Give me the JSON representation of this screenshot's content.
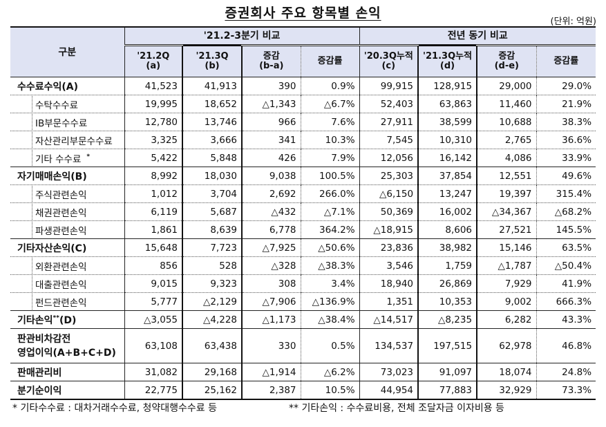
{
  "title": "증권회사 주요 항목별 손익",
  "unit": "(단위: 억원)",
  "header": {
    "category": "구분",
    "group1": "'21.2-3분기 비교",
    "group2": "전년 동기 비교",
    "cols": [
      {
        "line1": "'21.2Q",
        "line2": "(a)"
      },
      {
        "line1": "'21.3Q",
        "line2": "(b)"
      },
      {
        "line1": "증감",
        "line2": "(b-a)"
      },
      {
        "line1": "증감률",
        "line2": ""
      },
      {
        "line1": "'20.3Q누적",
        "line2": "(c)"
      },
      {
        "line1": "'21.3Q누적",
        "line2": "(d)"
      },
      {
        "line1": "증감",
        "line2": "(d-e)"
      },
      {
        "line1": "증감률",
        "line2": ""
      }
    ]
  },
  "rows": [
    {
      "label": "수수료수익(A)",
      "type": "major",
      "values": [
        "41,523",
        "41,913",
        "390",
        "0.9%",
        "99,915",
        "128,915",
        "29,000",
        "29.0%"
      ]
    },
    {
      "label": "수탁수수료",
      "type": "minor",
      "values": [
        "19,995",
        "18,652",
        "△1,343",
        "△6.7%",
        "52,403",
        "63,863",
        "11,460",
        "21.9%"
      ]
    },
    {
      "label": "IB부문수수료",
      "type": "minor",
      "values": [
        "12,780",
        "13,746",
        "966",
        "7.6%",
        "27,911",
        "38,599",
        "10,688",
        "38.3%"
      ]
    },
    {
      "label": "자산관리부문수수료",
      "type": "minor",
      "values": [
        "3,325",
        "3,666",
        "341",
        "10.3%",
        "7,545",
        "10,310",
        "2,765",
        "36.6%"
      ]
    },
    {
      "label": "기타 수수료",
      "sup": "*",
      "type": "minor",
      "values": [
        "5,422",
        "5,848",
        "426",
        "7.9%",
        "12,056",
        "16,142",
        "4,086",
        "33.9%"
      ]
    },
    {
      "label": "자기매매손익(B)",
      "type": "major",
      "values": [
        "8,992",
        "18,030",
        "9,038",
        "100.5%",
        "25,303",
        "37,854",
        "12,551",
        "49.6%"
      ]
    },
    {
      "label": "주식관련손익",
      "type": "minor",
      "values": [
        "1,012",
        "3,704",
        "2,692",
        "266.0%",
        "△6,150",
        "13,247",
        "19,397",
        "315.4%"
      ]
    },
    {
      "label": "채권관련손익",
      "type": "minor",
      "values": [
        "6,119",
        "5,687",
        "△432",
        "△7.1%",
        "50,369",
        "16,002",
        "△34,367",
        "△68.2%"
      ]
    },
    {
      "label": "파생관련손익",
      "type": "minor",
      "values": [
        "1,861",
        "8,639",
        "6,778",
        "364.2%",
        "△18,915",
        "8,606",
        "27,521",
        "145.5%"
      ]
    },
    {
      "label": "기타자산손익(C)",
      "type": "major",
      "values": [
        "15,648",
        "7,723",
        "△7,925",
        "△50.6%",
        "23,836",
        "38,982",
        "15,146",
        "63.5%"
      ]
    },
    {
      "label": "외환관련손익",
      "type": "minor",
      "values": [
        "856",
        "528",
        "△328",
        "△38.3%",
        "3,546",
        "1,759",
        "△1,787",
        "△50.4%"
      ]
    },
    {
      "label": "대출관련손익",
      "type": "minor",
      "values": [
        "9,015",
        "9,323",
        "308",
        "3.4%",
        "18,940",
        "26,869",
        "7,929",
        "41.9%"
      ]
    },
    {
      "label": "펀드관련손익",
      "type": "minor",
      "values": [
        "5,777",
        "△2,129",
        "△7,906",
        "△136.9%",
        "1,351",
        "10,353",
        "9,002",
        "666.3%"
      ]
    },
    {
      "label": "기타손익",
      "sup": "**",
      "suffix": "(D)",
      "type": "major",
      "values": [
        "△3,055",
        "△4,228",
        "△1,173",
        "△38.4%",
        "△14,517",
        "△8,235",
        "6,282",
        "43.3%"
      ]
    },
    {
      "label": "판관비차감전",
      "label2": "영업이익(A+B+C+D)",
      "type": "major-tall",
      "values": [
        "63,108",
        "63,438",
        "330",
        "0.5%",
        "134,537",
        "197,515",
        "62,978",
        "46.8%"
      ]
    },
    {
      "label": "판매관리비",
      "type": "major",
      "values": [
        "31,082",
        "29,168",
        "△1,914",
        "△6.2%",
        "73,023",
        "91,097",
        "18,074",
        "24.8%"
      ]
    },
    {
      "label": "분기순이익",
      "type": "major-last",
      "values": [
        "22,775",
        "25,162",
        "2,387",
        "10.5%",
        "44,954",
        "77,883",
        "32,929",
        "73.3%"
      ]
    }
  ],
  "footnotes": [
    "* 기타수수료 : 대차거래수수료, 청약대행수수료 등",
    "** 기타손익 : 수수료비용, 전체 조달자금 이자비용 등"
  ]
}
